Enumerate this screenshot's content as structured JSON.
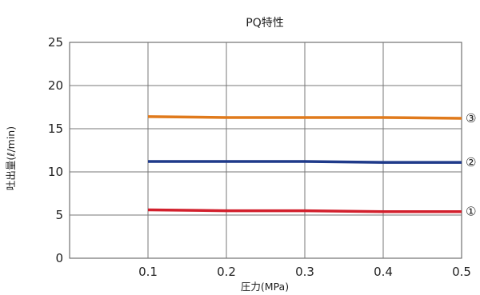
{
  "chart_data": {
    "type": "line",
    "title": "PQ特性",
    "xlabel": "圧力(MPa)",
    "ylabel": "吐出量(ℓ/min)",
    "x": [
      0.1,
      0.2,
      0.3,
      0.4,
      0.5
    ],
    "xlim": [
      0,
      0.5
    ],
    "ylim": [
      0,
      25
    ],
    "x_ticks": [
      "0.1",
      "0.2",
      "0.3",
      "0.4",
      "0.5"
    ],
    "y_ticks": [
      "0",
      "5",
      "10",
      "15",
      "20",
      "25"
    ],
    "grid": true,
    "series": [
      {
        "name": "①",
        "color": "#d2202d",
        "values": [
          5.6,
          5.5,
          5.5,
          5.4,
          5.4
        ]
      },
      {
        "name": "②",
        "color": "#1f3a8a",
        "values": [
          11.2,
          11.2,
          11.2,
          11.1,
          11.1
        ]
      },
      {
        "name": "③",
        "color": "#e07a1c",
        "values": [
          16.4,
          16.3,
          16.3,
          16.3,
          16.2
        ]
      }
    ]
  }
}
